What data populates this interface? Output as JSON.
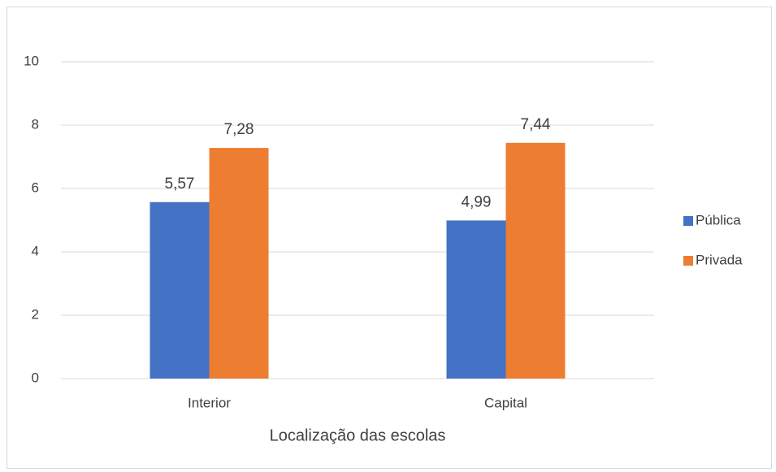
{
  "chart_data": {
    "type": "bar",
    "xlabel": "Localização das escolas",
    "categories": [
      "Interior",
      "Capital"
    ],
    "series": [
      {
        "name": "Pública",
        "color": "#4472c4",
        "values": [
          5.57,
          4.99
        ],
        "value_labels": [
          "5,57",
          "4,99"
        ]
      },
      {
        "name": "Privada",
        "color": "#ed7d31",
        "values": [
          7.28,
          7.44
        ],
        "value_labels": [
          "7,28",
          "7,44"
        ]
      }
    ],
    "ylim": [
      0,
      10
    ],
    "yticks": [
      0,
      2,
      4,
      6,
      8,
      10
    ],
    "grid": true,
    "legend": "right"
  }
}
